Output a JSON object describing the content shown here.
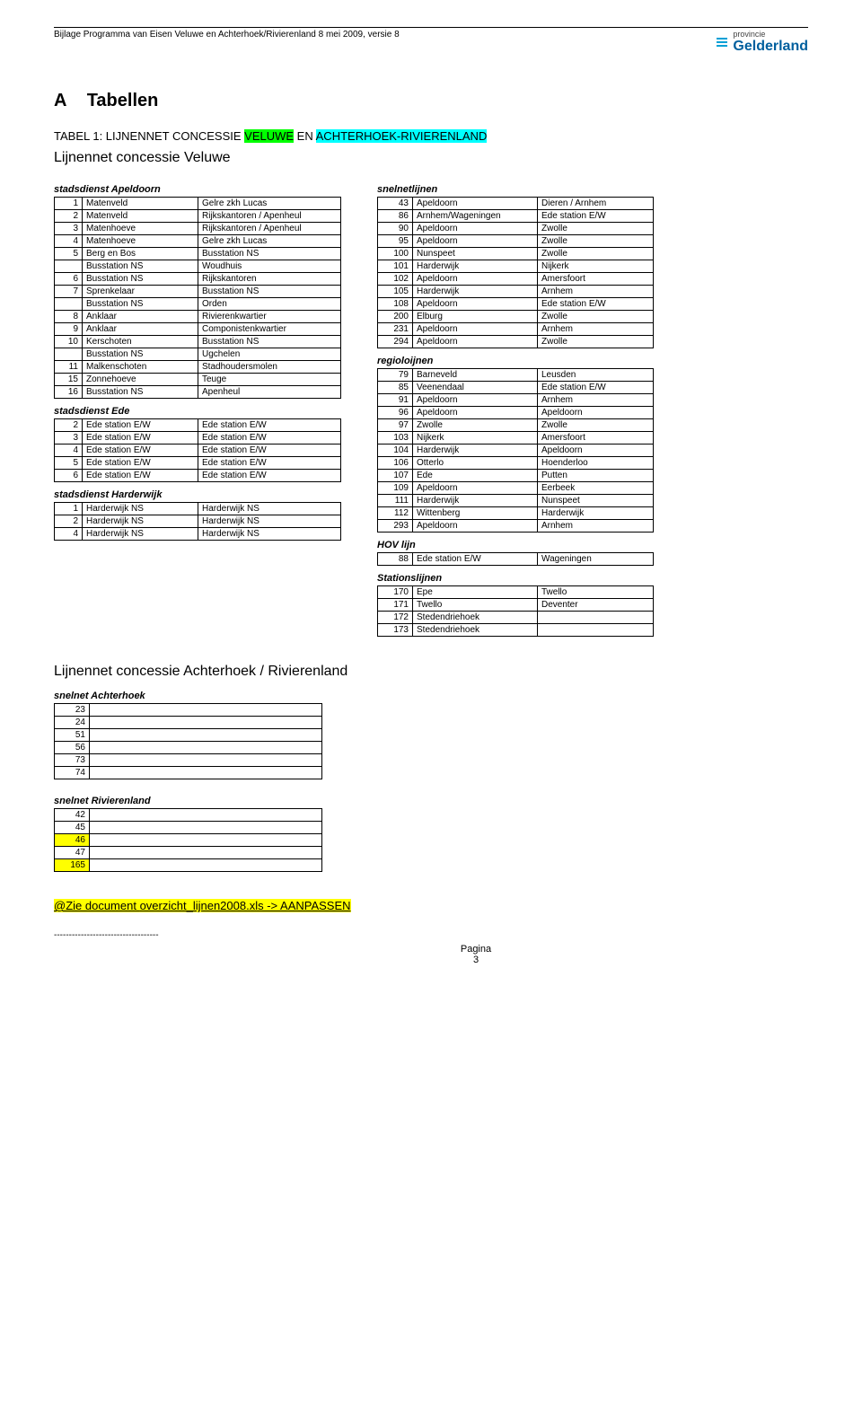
{
  "header": {
    "left": "Bijlage Programma van Eisen Veluwe en Achterhoek/Rivierenland        8 mei 2009, versie 8",
    "logo_top": "provincie",
    "logo_main": "Gelderland"
  },
  "title_A": "A",
  "title_rest": "Tabellen",
  "caption": {
    "pre": "TABEL 1: LIJNENNET CONCESSIE ",
    "hl1": "VELUWE",
    "mid": " EN ",
    "hl2": "ACHTERHOEK-RIVIERENLAND"
  },
  "subtitle1": "Lijnennet concessie Veluwe",
  "left": {
    "sec1": "stadsdienst Apeldoorn",
    "t1": [
      [
        "1",
        "Matenveld",
        "Gelre zkh Lucas"
      ],
      [
        "2",
        "Matenveld",
        "Rijkskantoren / Apenheul"
      ],
      [
        "3",
        "Matenhoeve",
        "Rijkskantoren / Apenheul"
      ],
      [
        "4",
        "Matenhoeve",
        "Gelre zkh Lucas"
      ],
      [
        "5",
        "Berg en Bos",
        "Busstation NS"
      ],
      [
        "",
        "Busstation NS",
        "Woudhuis"
      ],
      [
        "6",
        "Busstation NS",
        "Rijkskantoren"
      ],
      [
        "7",
        "Sprenkelaar",
        "Busstation NS"
      ],
      [
        "",
        "Busstation NS",
        "Orden"
      ],
      [
        "8",
        "Anklaar",
        "Rivierenkwartier"
      ],
      [
        "9",
        "Anklaar",
        "Componistenkwartier"
      ],
      [
        "10",
        "Kerschoten",
        "Busstation NS"
      ],
      [
        "",
        "Busstation NS",
        "Ugchelen"
      ],
      [
        "11",
        "Malkenschoten",
        "Stadhoudersmolen"
      ],
      [
        "15",
        "Zonnehoeve",
        "Teuge"
      ],
      [
        "16",
        "Busstation NS",
        "Apenheul"
      ]
    ],
    "sec2": "stadsdienst Ede",
    "t2": [
      [
        "2",
        "Ede station E/W",
        "Ede station E/W"
      ],
      [
        "3",
        "Ede station E/W",
        "Ede station E/W"
      ],
      [
        "4",
        "Ede station E/W",
        "Ede station E/W"
      ],
      [
        "5",
        "Ede station E/W",
        "Ede station E/W"
      ],
      [
        "6",
        "Ede station E/W",
        "Ede station E/W"
      ]
    ],
    "sec3": "stadsdienst Harderwijk",
    "t3": [
      [
        "1",
        "Harderwijk NS",
        "Harderwijk NS"
      ],
      [
        "2",
        "Harderwijk NS",
        "Harderwijk NS"
      ],
      [
        "4",
        "Harderwijk NS",
        "Harderwijk NS"
      ]
    ]
  },
  "right": {
    "sec1": "snelnetlijnen",
    "t1": [
      [
        "43",
        "Apeldoorn",
        "Dieren / Arnhem"
      ],
      [
        "86",
        "Arnhem/Wageningen",
        "Ede station E/W"
      ],
      [
        "90",
        "Apeldoorn",
        "Zwolle"
      ],
      [
        "95",
        "Apeldoorn",
        "Zwolle"
      ],
      [
        "100",
        "Nunspeet",
        "Zwolle"
      ],
      [
        "101",
        "Harderwijk",
        "Nijkerk"
      ],
      [
        "102",
        "Apeldoorn",
        "Amersfoort"
      ],
      [
        "105",
        "Harderwijk",
        "Arnhem"
      ],
      [
        "108",
        "Apeldoorn",
        "Ede station E/W"
      ],
      [
        "200",
        "Elburg",
        "Zwolle"
      ],
      [
        "231",
        "Apeldoorn",
        "Arnhem"
      ],
      [
        "294",
        "Apeldoorn",
        "Zwolle"
      ]
    ],
    "sec2": "regioloijnen",
    "t2": [
      [
        "79",
        "Barneveld",
        "Leusden"
      ],
      [
        "85",
        "Veenendaal",
        "Ede station E/W"
      ],
      [
        "91",
        "Apeldoorn",
        "Arnhem"
      ],
      [
        "96",
        "Apeldoorn",
        "Apeldoorn"
      ],
      [
        "97",
        "Zwolle",
        "Zwolle"
      ],
      [
        "103",
        "Nijkerk",
        "Amersfoort"
      ],
      [
        "104",
        "Harderwijk",
        "Apeldoorn"
      ],
      [
        "106",
        "Otterlo",
        "Hoenderloo"
      ],
      [
        "107",
        "Ede",
        "Putten"
      ],
      [
        "109",
        "Apeldoorn",
        "Eerbeek"
      ],
      [
        "111",
        "Harderwijk",
        "Nunspeet"
      ],
      [
        "112",
        "Wittenberg",
        "Harderwijk"
      ],
      [
        "293",
        "Apeldoorn",
        "Arnhem"
      ]
    ],
    "sec3": "HOV lijn",
    "t3": [
      [
        "88",
        "Ede station E/W",
        "Wageningen"
      ]
    ],
    "sec4": "Stationslijnen",
    "t4": [
      [
        "170",
        "Epe",
        "Twello"
      ],
      [
        "171",
        "Twello",
        "Deventer"
      ],
      [
        "172",
        "Stedendriehoek",
        ""
      ],
      [
        "173",
        "Stedendriehoek",
        ""
      ]
    ]
  },
  "subtitle2": "Lijnennet concessie Achterhoek / Rivierenland",
  "achterhoek": {
    "head": "snelnet Achterhoek",
    "rows": [
      [
        "23",
        ""
      ],
      [
        "24",
        ""
      ],
      [
        "51",
        ""
      ],
      [
        "56",
        ""
      ],
      [
        "73",
        ""
      ],
      [
        "74",
        ""
      ]
    ]
  },
  "rivierenland": {
    "head": "snelnet Rivierenland",
    "rows": [
      [
        "42",
        "",
        ""
      ],
      [
        "45",
        "",
        ""
      ],
      [
        "46",
        "",
        "y"
      ],
      [
        "47",
        "",
        ""
      ],
      [
        "165",
        "",
        "y"
      ]
    ]
  },
  "bottom_note_pre": "@Zie document ",
  "bottom_note_hl": "overzicht_lijnen2008.xls -> AANPASSEN",
  "pagina_label": "Pagina",
  "pagina_num": "3"
}
